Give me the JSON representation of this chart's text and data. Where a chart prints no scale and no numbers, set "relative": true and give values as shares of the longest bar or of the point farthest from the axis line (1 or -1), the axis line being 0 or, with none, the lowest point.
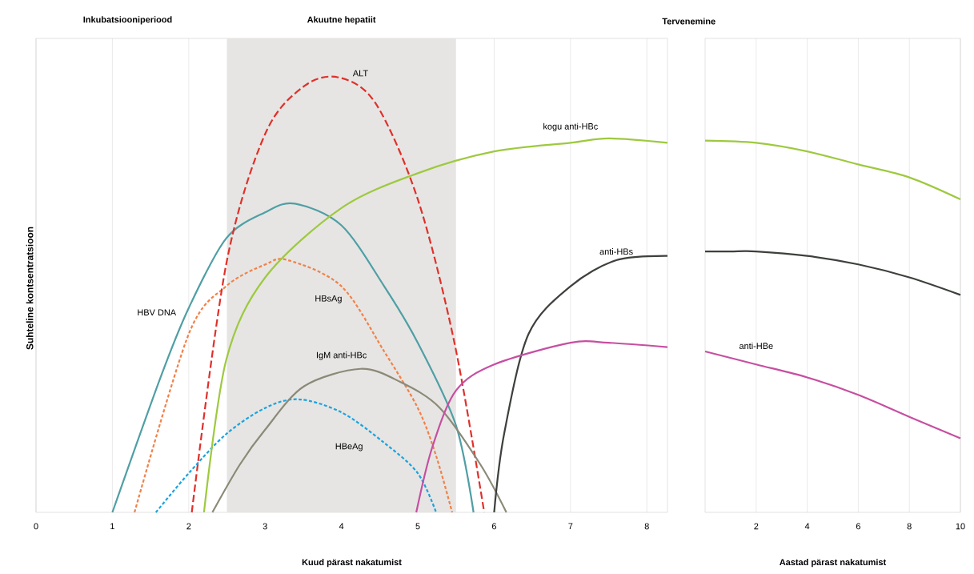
{
  "chart_data": [
    {
      "type": "line",
      "relative": true,
      "xlabel": "Kuud pärast nakatumist",
      "ylabel": "Suhteline kontsentratsioon",
      "xlim": [
        0,
        8.27
      ],
      "xticks": [
        0,
        1,
        2,
        3,
        4,
        5,
        6,
        7,
        8
      ],
      "grid": "x",
      "bands": [
        {
          "axis": "x",
          "from": 2.5,
          "to": 5.5,
          "label": "Akuutne hepatiit",
          "color": "#e6e5e3"
        }
      ],
      "annotations": [
        "Inkubatsiooniperiood",
        "Tervenemine"
      ],
      "series": [
        {
          "name": "HBV DNA",
          "color": "#4f9fa5",
          "line_style": "solid",
          "x": [
            1.0,
            1.63,
            2.0,
            2.49,
            3.0,
            3.39,
            4.0,
            4.56,
            5.0,
            5.5,
            5.73
          ],
          "values": [
            0,
            0.31,
            0.47,
            0.63,
            0.69,
            0.71,
            0.66,
            0.52,
            0.39,
            0.2,
            0
          ]
        },
        {
          "name": "HBsAg",
          "color": "#f0824a",
          "line_style": "dotted",
          "x": [
            1.29,
            2.0,
            2.49,
            3.0,
            3.3,
            4.0,
            4.56,
            5.0,
            5.24,
            5.45
          ],
          "values": [
            0,
            0.41,
            0.52,
            0.57,
            0.58,
            0.52,
            0.37,
            0.24,
            0.13,
            0
          ]
        },
        {
          "name": "ALT",
          "color": "#e0302a",
          "line_style": "dashed",
          "x": [
            2.04,
            2.49,
            3.0,
            3.51,
            3.97,
            4.45,
            5.0,
            5.48,
            5.87
          ],
          "values": [
            0,
            0.57,
            0.87,
            0.98,
            1.0,
            0.94,
            0.72,
            0.39,
            0
          ]
        },
        {
          "name": "HBeAg",
          "color": "#1aa3e0",
          "line_style": "dotted",
          "x": [
            1.57,
            2.0,
            2.49,
            3.0,
            3.44,
            4.0,
            4.56,
            5.0,
            5.24
          ],
          "values": [
            0,
            0.09,
            0.18,
            0.24,
            0.26,
            0.23,
            0.16,
            0.09,
            0
          ]
        },
        {
          "name": "IgM anti-HBc",
          "color": "#8b8a78",
          "line_style": "solid",
          "x": [
            2.31,
            2.67,
            3.0,
            3.51,
            4.25,
            4.77,
            5.29,
            5.82,
            6.16
          ],
          "values": [
            0,
            0.11,
            0.19,
            0.29,
            0.33,
            0.3,
            0.24,
            0.11,
            0
          ]
        },
        {
          "name": "kogu anti-HBc",
          "color": "#9ec93f",
          "line_style": "solid",
          "x": [
            2.2,
            2.49,
            3.0,
            4.0,
            5.0,
            6.0,
            7.0,
            7.5,
            8.27
          ],
          "values": [
            0,
            0.35,
            0.54,
            0.7,
            0.78,
            0.83,
            0.85,
            0.86,
            0.85
          ]
        },
        {
          "name": "anti-HBs",
          "color": "#3d403c",
          "line_style": "solid",
          "x": [
            6.0,
            6.13,
            6.45,
            7.0,
            7.6,
            8.27
          ],
          "values": [
            0,
            0.18,
            0.41,
            0.52,
            0.58,
            0.59
          ]
        },
        {
          "color": "#c64fa0",
          "line_style": "solid",
          "x": [
            4.98,
            5.19,
            5.5,
            6.0,
            7.0,
            7.5,
            8.27
          ],
          "values": [
            0,
            0.15,
            0.28,
            0.34,
            0.39,
            0.39,
            0.38
          ]
        }
      ]
    },
    {
      "type": "line",
      "relative": true,
      "xlabel": "Aastad pärast nakatumist",
      "xlim": [
        0,
        10
      ],
      "xticks": [
        2,
        4,
        6,
        8,
        10
      ],
      "grid": "x",
      "series": [
        {
          "color": "#9ec93f",
          "line_style": "solid",
          "x": [
            0,
            2,
            4,
            6,
            8,
            10
          ],
          "values": [
            1,
            0.994,
            0.971,
            0.936,
            0.901,
            0.842
          ]
        },
        {
          "color": "#3d403c",
          "line_style": "solid",
          "x": [
            0,
            1,
            2,
            4,
            6,
            8,
            10
          ],
          "values": [
            0.702,
            0.702,
            0.702,
            0.69,
            0.667,
            0.632,
            0.585
          ]
        },
        {
          "name": "anti-HBe",
          "color": "#c64fa0",
          "line_style": "solid",
          "x": [
            0,
            2,
            4,
            6,
            8,
            10
          ],
          "values": [
            0.433,
            0.398,
            0.363,
            0.316,
            0.257,
            0.199
          ]
        }
      ]
    }
  ]
}
